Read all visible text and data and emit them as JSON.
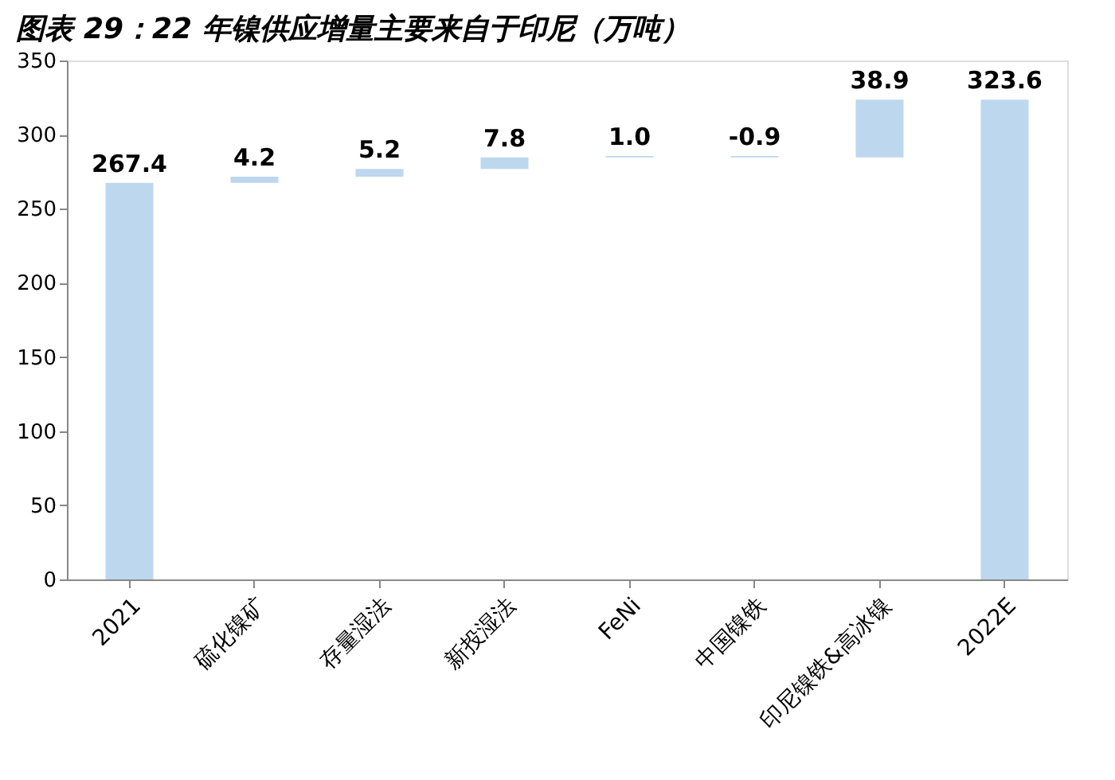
{
  "chart_data": {
    "type": "bar",
    "title": "图表 29：22 年镍供应增量主要来自于印尼（万吨）",
    "categories": [
      "2021",
      "硫化镍矿",
      "存量湿法",
      "新投湿法",
      "FeNi",
      "中国镍铁",
      "印尼镍铁&高冰镍",
      "2022E"
    ],
    "values": [
      267.4,
      4.2,
      5.2,
      7.8,
      1.0,
      -0.9,
      38.9,
      323.6
    ],
    "base": [
      0,
      267.4,
      271.6,
      276.8,
      284.6,
      285.6,
      284.7,
      0
    ],
    "value_labels": [
      "267.4",
      "4.2",
      "5.2",
      "7.8",
      "1.0",
      "-0.9",
      "38.9",
      "323.6"
    ],
    "color": "#bdd7ee",
    "ylim": [
      0,
      350
    ],
    "yticks": [
      0,
      50,
      100,
      150,
      200,
      250,
      300,
      350
    ],
    "grid": false
  }
}
